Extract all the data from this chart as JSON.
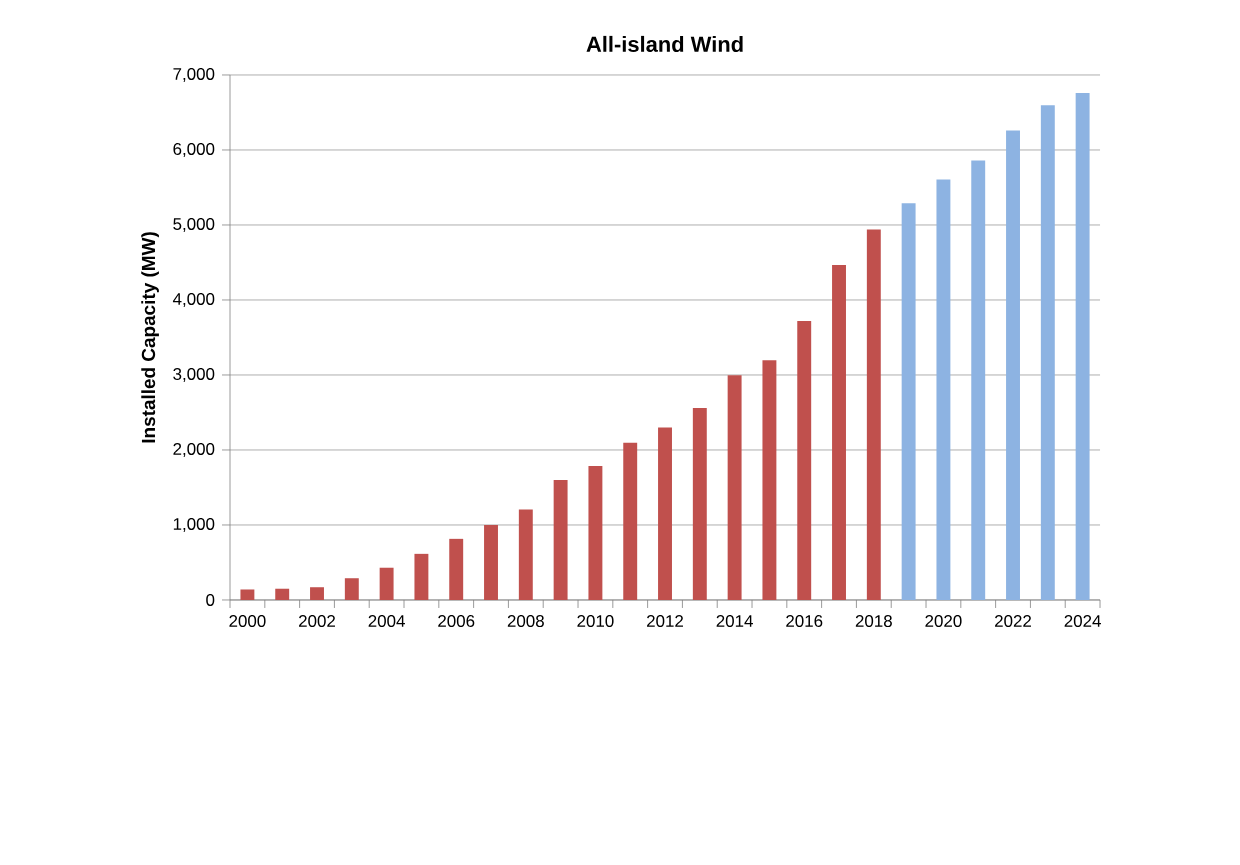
{
  "chart_data": {
    "type": "bar",
    "title": "All-island Wind",
    "ylabel": "Installed Capacity (MW)",
    "categories": [
      "2000",
      null,
      "2002",
      null,
      "2004",
      null,
      "2006",
      null,
      "2008",
      null,
      "2010",
      null,
      "2012",
      null,
      "2014",
      null,
      "2016",
      null,
      "2018",
      null,
      "2020",
      null,
      "2022",
      null,
      "2024"
    ],
    "values": [
      140,
      150,
      170,
      290,
      430,
      615,
      815,
      1000,
      1205,
      1600,
      1785,
      2095,
      2300,
      2560,
      2995,
      3195,
      3720,
      4465,
      4940,
      5290,
      5605,
      5860,
      6260,
      6595,
      6760
    ],
    "colors": [
      "#c0504d",
      "#c0504d",
      "#c0504d",
      "#c0504d",
      "#c0504d",
      "#c0504d",
      "#c0504d",
      "#c0504d",
      "#c0504d",
      "#c0504d",
      "#c0504d",
      "#c0504d",
      "#c0504d",
      "#c0504d",
      "#c0504d",
      "#c0504d",
      "#c0504d",
      "#c0504d",
      "#c0504d",
      "#8db3e2",
      "#8db3e2",
      "#8db3e2",
      "#8db3e2",
      "#8db3e2",
      "#8db3e2"
    ],
    "ylim": [
      0,
      7000
    ],
    "yticks": [
      0,
      {
        "value": 1000,
        "label": "1,000"
      },
      {
        "value": 2000,
        "label": "2,000"
      },
      {
        "value": 3000,
        "label": "3,000"
      },
      {
        "value": 4000,
        "label": "4,000"
      },
      {
        "value": 5000,
        "label": "5,000"
      },
      {
        "value": 6000,
        "label": "6,000"
      },
      {
        "value": 7000,
        "label": "7,000"
      }
    ],
    "grid": "y"
  }
}
